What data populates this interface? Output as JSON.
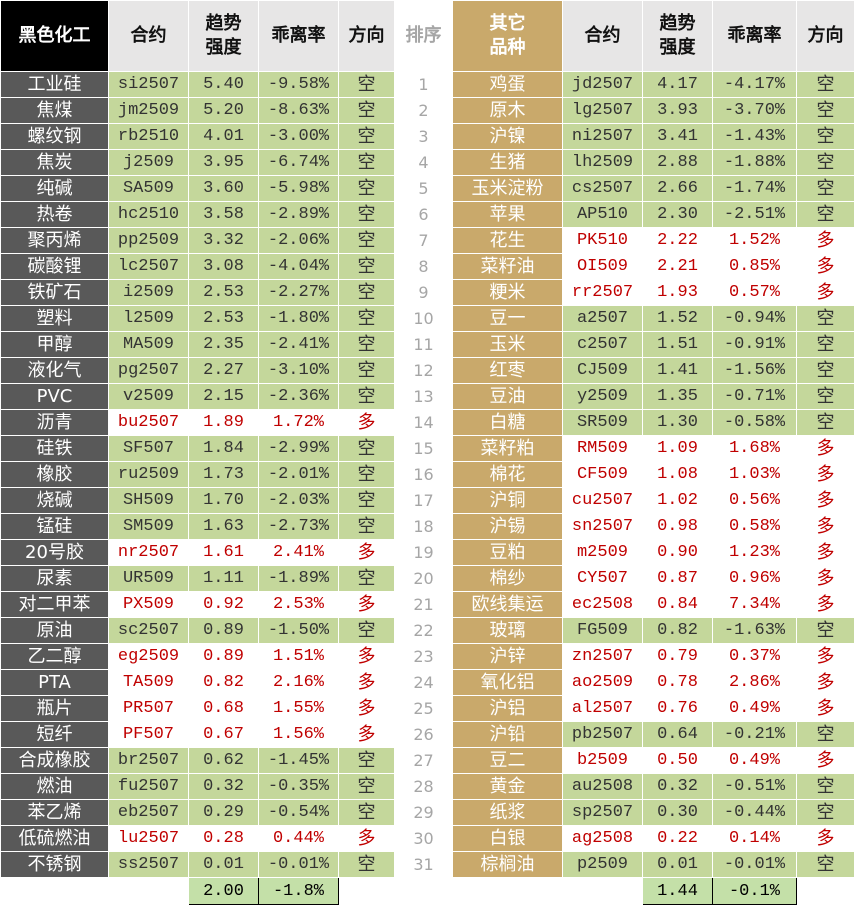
{
  "rank_header": "排序",
  "left": {
    "headers": [
      "黑色化工",
      "合约",
      "趋势\n强度",
      "乖离率",
      "方向"
    ],
    "rows": [
      [
        "工业硅",
        "si2507",
        "5.40",
        "-9.58%",
        "空"
      ],
      [
        "焦煤",
        "jm2509",
        "5.20",
        "-8.63%",
        "空"
      ],
      [
        "螺纹钢",
        "rb2510",
        "4.01",
        "-3.00%",
        "空"
      ],
      [
        "焦炭",
        "j2509",
        "3.95",
        "-6.74%",
        "空"
      ],
      [
        "纯碱",
        "SA509",
        "3.60",
        "-5.98%",
        "空"
      ],
      [
        "热卷",
        "hc2510",
        "3.58",
        "-2.89%",
        "空"
      ],
      [
        "聚丙烯",
        "pp2509",
        "3.32",
        "-2.06%",
        "空"
      ],
      [
        "碳酸锂",
        "lc2507",
        "3.08",
        "-4.04%",
        "空"
      ],
      [
        "铁矿石",
        "i2509",
        "2.53",
        "-2.27%",
        "空"
      ],
      [
        "塑料",
        "l2509",
        "2.53",
        "-1.80%",
        "空"
      ],
      [
        "甲醇",
        "MA509",
        "2.35",
        "-2.41%",
        "空"
      ],
      [
        "液化气",
        "pg2507",
        "2.27",
        "-3.10%",
        "空"
      ],
      [
        "PVC",
        "v2509",
        "2.15",
        "-2.36%",
        "空"
      ],
      [
        "沥青",
        "bu2507",
        "1.89",
        "1.72%",
        "多"
      ],
      [
        "硅铁",
        "SF507",
        "1.84",
        "-2.99%",
        "空"
      ],
      [
        "橡胶",
        "ru2509",
        "1.73",
        "-2.01%",
        "空"
      ],
      [
        "烧碱",
        "SH509",
        "1.70",
        "-2.03%",
        "空"
      ],
      [
        "锰硅",
        "SM509",
        "1.63",
        "-2.73%",
        "空"
      ],
      [
        "20号胶",
        "nr2507",
        "1.61",
        "2.41%",
        "多"
      ],
      [
        "尿素",
        "UR509",
        "1.11",
        "-1.89%",
        "空"
      ],
      [
        "对二甲苯",
        "PX509",
        "0.92",
        "2.53%",
        "多"
      ],
      [
        "原油",
        "sc2507",
        "0.89",
        "-1.50%",
        "空"
      ],
      [
        "乙二醇",
        "eg2509",
        "0.89",
        "1.51%",
        "多"
      ],
      [
        "PTA",
        "TA509",
        "0.82",
        "2.16%",
        "多"
      ],
      [
        "瓶片",
        "PR507",
        "0.68",
        "1.55%",
        "多"
      ],
      [
        "短纤",
        "PF507",
        "0.67",
        "1.56%",
        "多"
      ],
      [
        "合成橡胶",
        "br2507",
        "0.62",
        "-1.45%",
        "空"
      ],
      [
        "燃油",
        "fu2507",
        "0.32",
        "-0.35%",
        "空"
      ],
      [
        "苯乙烯",
        "eb2507",
        "0.29",
        "-0.54%",
        "空"
      ],
      [
        "低硫燃油",
        "lu2507",
        "0.28",
        "0.44%",
        "多"
      ],
      [
        "不锈钢",
        "ss2507",
        "0.01",
        "-0.01%",
        "空"
      ]
    ],
    "footer": [
      "2.00",
      "-1.8%"
    ]
  },
  "right": {
    "headers": [
      "其它\n品种",
      "合约",
      "趋势\n强度",
      "乖离率",
      "方向"
    ],
    "rows": [
      [
        "鸡蛋",
        "jd2507",
        "4.17",
        "-4.17%",
        "空"
      ],
      [
        "原木",
        "lg2507",
        "3.93",
        "-3.70%",
        "空"
      ],
      [
        "沪镍",
        "ni2507",
        "3.41",
        "-1.43%",
        "空"
      ],
      [
        "生猪",
        "lh2509",
        "2.88",
        "-1.88%",
        "空"
      ],
      [
        "玉米淀粉",
        "cs2507",
        "2.66",
        "-1.74%",
        "空"
      ],
      [
        "苹果",
        "AP510",
        "2.30",
        "-2.51%",
        "空"
      ],
      [
        "花生",
        "PK510",
        "2.22",
        "1.52%",
        "多"
      ],
      [
        "菜籽油",
        "OI509",
        "2.21",
        "0.85%",
        "多"
      ],
      [
        "粳米",
        "rr2507",
        "1.93",
        "0.57%",
        "多"
      ],
      [
        "豆一",
        "a2507",
        "1.52",
        "-0.94%",
        "空"
      ],
      [
        "玉米",
        "c2507",
        "1.51",
        "-0.91%",
        "空"
      ],
      [
        "红枣",
        "CJ509",
        "1.41",
        "-1.56%",
        "空"
      ],
      [
        "豆油",
        "y2509",
        "1.35",
        "-0.71%",
        "空"
      ],
      [
        "白糖",
        "SR509",
        "1.30",
        "-0.58%",
        "空"
      ],
      [
        "菜籽粕",
        "RM509",
        "1.09",
        "1.68%",
        "多"
      ],
      [
        "棉花",
        "CF509",
        "1.08",
        "1.03%",
        "多"
      ],
      [
        "沪铜",
        "cu2507",
        "1.02",
        "0.56%",
        "多"
      ],
      [
        "沪锡",
        "sn2507",
        "0.98",
        "0.58%",
        "多"
      ],
      [
        "豆粕",
        "m2509",
        "0.90",
        "1.23%",
        "多"
      ],
      [
        "棉纱",
        "CY507",
        "0.87",
        "0.96%",
        "多"
      ],
      [
        "欧线集运",
        "ec2508",
        "0.84",
        "7.34%",
        "多"
      ],
      [
        "玻璃",
        "FG509",
        "0.82",
        "-1.63%",
        "空"
      ],
      [
        "沪锌",
        "zn2507",
        "0.79",
        "0.37%",
        "多"
      ],
      [
        "氧化铝",
        "ao2509",
        "0.78",
        "2.86%",
        "多"
      ],
      [
        "沪铝",
        "al2507",
        "0.76",
        "0.49%",
        "多"
      ],
      [
        "沪铅",
        "pb2507",
        "0.64",
        "-0.21%",
        "空"
      ],
      [
        "豆二",
        "b2509",
        "0.50",
        "0.49%",
        "多"
      ],
      [
        "黄金",
        "au2508",
        "0.32",
        "-0.51%",
        "空"
      ],
      [
        "纸浆",
        "sp2507",
        "0.30",
        "-0.44%",
        "空"
      ],
      [
        "白银",
        "ag2508",
        "0.22",
        "0.14%",
        "多"
      ],
      [
        "棕榈油",
        "p2509",
        "0.01",
        "-0.01%",
        "空"
      ]
    ],
    "footer": [
      "1.44",
      "-0.1%"
    ]
  },
  "ranks": [
    1,
    2,
    3,
    4,
    5,
    6,
    7,
    8,
    9,
    10,
    11,
    12,
    13,
    14,
    15,
    16,
    17,
    18,
    19,
    20,
    21,
    22,
    23,
    24,
    25,
    26,
    27,
    28,
    29,
    30,
    31
  ]
}
